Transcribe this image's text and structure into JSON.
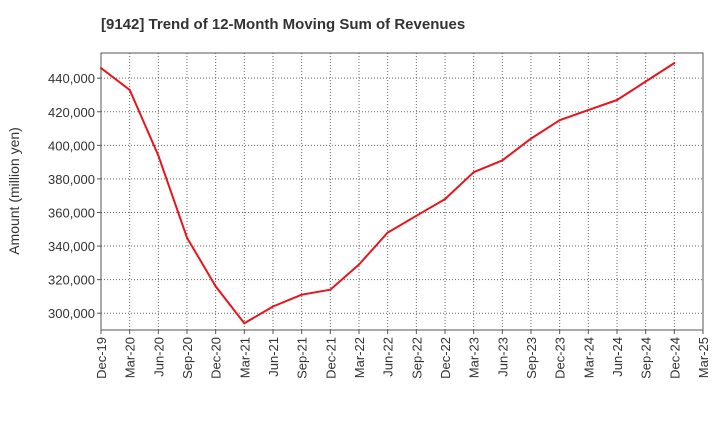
{
  "chart_data": {
    "type": "line",
    "title": "[9142]  Trend of 12-Month Moving Sum of Revenues",
    "xlabel": "",
    "ylabel": "Amount (million yen)",
    "categories": [
      "Dec-19",
      "Mar-20",
      "Jun-20",
      "Sep-20",
      "Dec-20",
      "Mar-21",
      "Jun-21",
      "Sep-21",
      "Dec-21",
      "Mar-22",
      "Jun-22",
      "Sep-22",
      "Dec-22",
      "Mar-23",
      "Jun-23",
      "Sep-23",
      "Dec-23",
      "Mar-24",
      "Jun-24",
      "Sep-24",
      "Dec-24",
      "Mar-25"
    ],
    "y_ticks": [
      "300,000",
      "320,000",
      "340,000",
      "360,000",
      "380,000",
      "400,000",
      "420,000",
      "440,000"
    ],
    "y_tick_values": [
      300000,
      320000,
      340000,
      360000,
      380000,
      400000,
      420000,
      440000
    ],
    "ylim": [
      290000,
      455000
    ],
    "grid": true,
    "series": [
      {
        "color": "#e8141b",
        "values": [
          446000,
          433000,
          394000,
          345000,
          316000,
          294000,
          304000,
          311000,
          314000,
          329000,
          348000,
          358000,
          368000,
          384000,
          391000,
          404000,
          415000,
          421000,
          427000,
          438000,
          449000,
          null
        ]
      }
    ]
  }
}
